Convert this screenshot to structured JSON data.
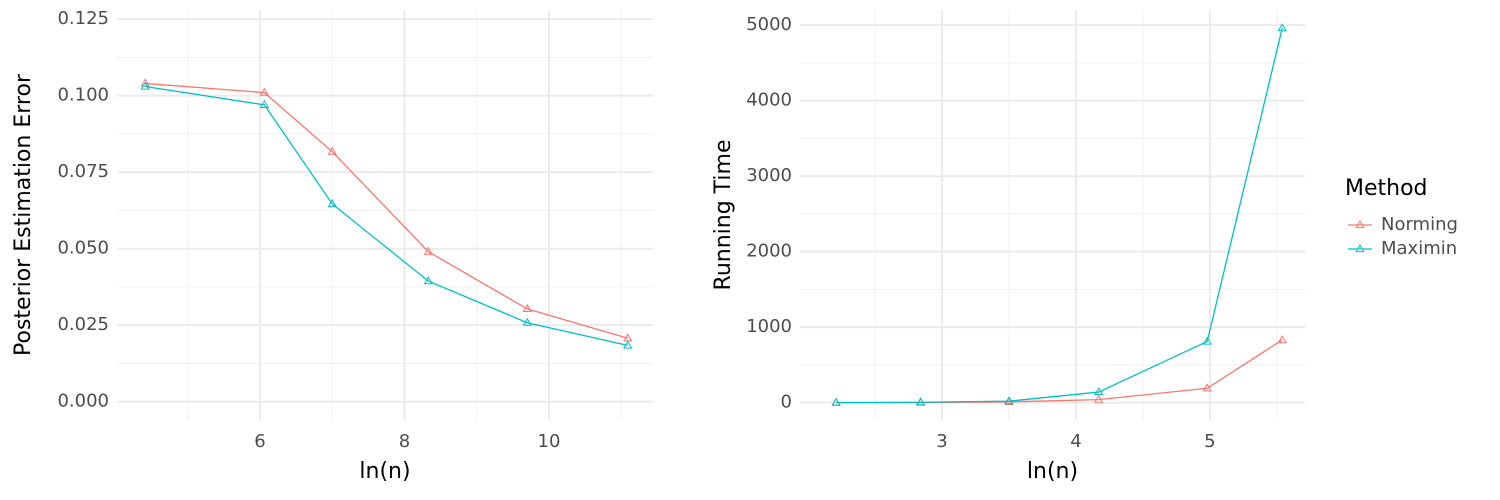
{
  "chart_data": [
    {
      "type": "line",
      "x_label": "ln(n)",
      "y_label": "Posterior Estimation Error",
      "x": [
        4.41,
        6.06,
        7.0,
        8.33,
        9.7,
        11.09
      ],
      "series": [
        {
          "color": "#F8766D",
          "values": [
            0.104,
            0.101,
            0.0817,
            0.049,
            0.0303,
            0.0207
          ]
        },
        {
          "color": "#00BFC4",
          "values": [
            0.103,
            0.097,
            0.0646,
            0.0394,
            0.0258,
            0.0184
          ]
        }
      ],
      "xlim": [
        4.02,
        11.44
      ],
      "ylim": [
        -0.006,
        0.128
      ],
      "xticks": [
        6,
        8,
        10
      ],
      "yticks": [
        {
          "value": 0,
          "label": "0.000"
        },
        0.025,
        {
          "value": 0.05,
          "label": "0.050"
        },
        0.075,
        {
          "value": 0.1,
          "label": "0.100"
        },
        0.125
      ],
      "grid": true
    },
    {
      "type": "line",
      "x_label": "ln(n)",
      "y_label": "Running Time",
      "x": [
        2.21,
        2.84,
        3.5,
        4.17,
        4.98,
        5.54
      ],
      "series": [
        {
          "name": "Norming",
          "color": "#F8766D",
          "values": [
            0,
            0,
            10,
            40,
            190,
            830
          ]
        },
        {
          "name": "Maximin",
          "color": "#00BFC4",
          "values": [
            0,
            5,
            20,
            140,
            810,
            4960
          ]
        }
      ],
      "xlim": [
        1.94,
        5.71
      ],
      "ylim": [
        -230,
        5200
      ],
      "xticks": [
        3,
        4,
        5
      ],
      "yticks": [
        0,
        1000,
        2000,
        3000,
        4000,
        5000
      ],
      "grid": true,
      "legend_title": "Method",
      "legend": "right"
    }
  ]
}
